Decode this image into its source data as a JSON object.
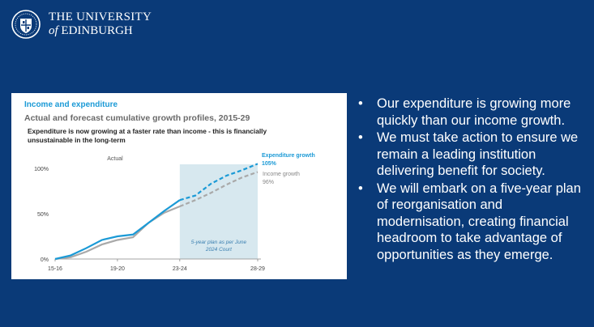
{
  "header": {
    "line1": "THE UNIVERSITY",
    "line2_prefix": "of",
    "line2_main": "EDINBURGH"
  },
  "chart_card": {
    "title": "Income and expenditure",
    "subtitle": "Actual and forecast cumulative growth profiles, 2015-29",
    "note": "Expenditure is now growing at a faster rate than income - this is financially unsustainable in the long-term"
  },
  "chart_data": {
    "type": "line",
    "x_ticks": [
      "15-16",
      "19-20",
      "23-24",
      "28-29"
    ],
    "y_ticks": [
      "0%",
      "50%",
      "100%"
    ],
    "ylim": [
      0,
      110
    ],
    "annotations": {
      "actual": "Actual",
      "plan_box": "5-year plan as per June 2024 Court"
    },
    "series": [
      {
        "name": "Expenditure growth",
        "end_label": "105%",
        "color": "#1b9ad6",
        "x": [
          0,
          1,
          2,
          3,
          4,
          5,
          6,
          7,
          8,
          9,
          10,
          11,
          12,
          13
        ],
        "values": [
          0,
          4,
          12,
          21,
          25,
          27,
          40,
          53,
          65,
          70,
          83,
          92,
          98,
          105
        ],
        "dashed_from_index": 8
      },
      {
        "name": "Income growth",
        "end_label": "96%",
        "color": "#a9a9a9",
        "x": [
          0,
          1,
          2,
          3,
          4,
          5,
          6,
          7,
          8,
          9,
          10,
          11,
          12,
          13
        ],
        "values": [
          0,
          2,
          8,
          16,
          21,
          24,
          40,
          51,
          58,
          65,
          73,
          82,
          90,
          96
        ],
        "dashed_from_index": 8
      }
    ],
    "forecast_region": {
      "from_x": 8,
      "to_x": 13
    }
  },
  "bullets": [
    "Our expenditure is growing more quickly than our income growth.",
    "We must take action to ensure we remain a leading institution delivering benefit for society.",
    "We will embark on a five-year plan of reorganisation and modernisation, creating financial headroom to take advantage of opportunities as they emerge."
  ]
}
